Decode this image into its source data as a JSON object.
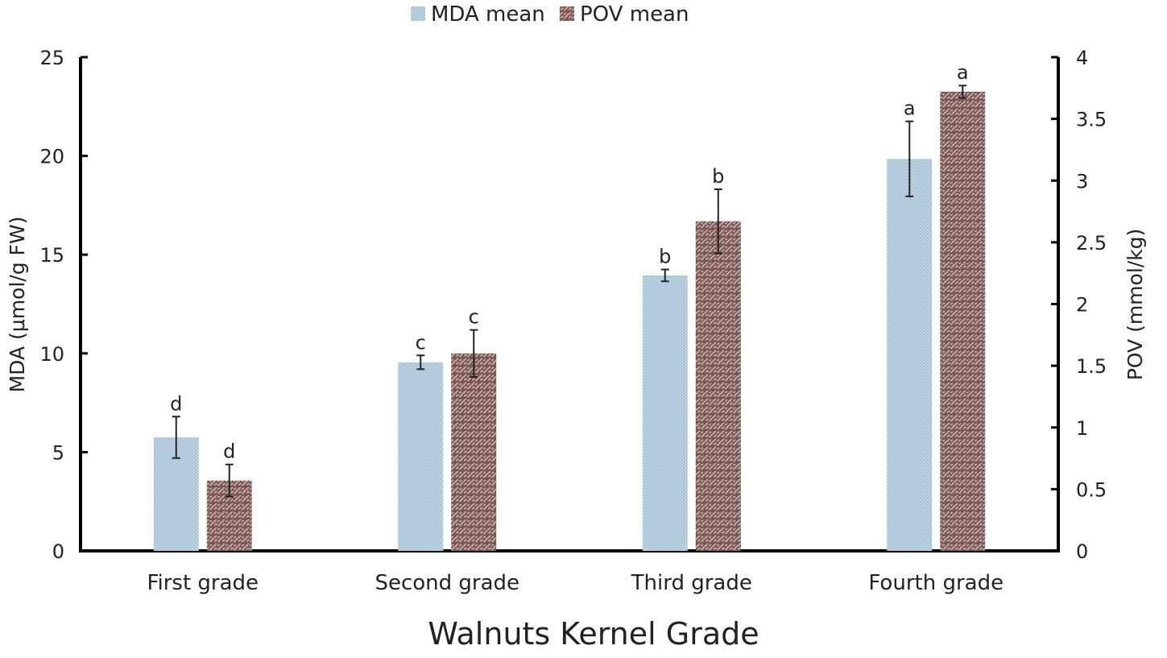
{
  "chart_data": {
    "type": "bar",
    "xlabel": "Walnuts Kernel Grade",
    "ylabel_left": "MDA  (μmol/g FW)",
    "ylabel_right": "POV (mmol/kg)",
    "categories": [
      "First grade",
      "Second grade",
      "Third grade",
      "Fourth grade"
    ],
    "legend_position": "top-center",
    "grid": false,
    "y_left": {
      "min": 0,
      "max": 25,
      "ticks": [
        "0",
        "5",
        "10",
        "15",
        "20",
        "25"
      ]
    },
    "y_right": {
      "min": 0,
      "max": 4,
      "ticks": [
        "0",
        "0.5",
        "1",
        "1.5",
        "2",
        "2.5",
        "3",
        "3.5",
        "4"
      ]
    },
    "series": [
      {
        "name": "MDA mean",
        "axis": "left",
        "color": "#b7cfe0",
        "values": [
          5.75,
          9.55,
          13.95,
          19.85
        ],
        "errors": [
          1.05,
          0.35,
          0.3,
          1.9
        ],
        "letters": [
          "d",
          "c",
          "b",
          "a"
        ]
      },
      {
        "name": "POV mean",
        "axis": "right",
        "color": "#8c6a66",
        "values": [
          0.57,
          1.6,
          2.67,
          3.72
        ],
        "errors": [
          0.13,
          0.19,
          0.26,
          0.05
        ],
        "letters": [
          "d",
          "c",
          "b",
          "a"
        ]
      }
    ]
  }
}
